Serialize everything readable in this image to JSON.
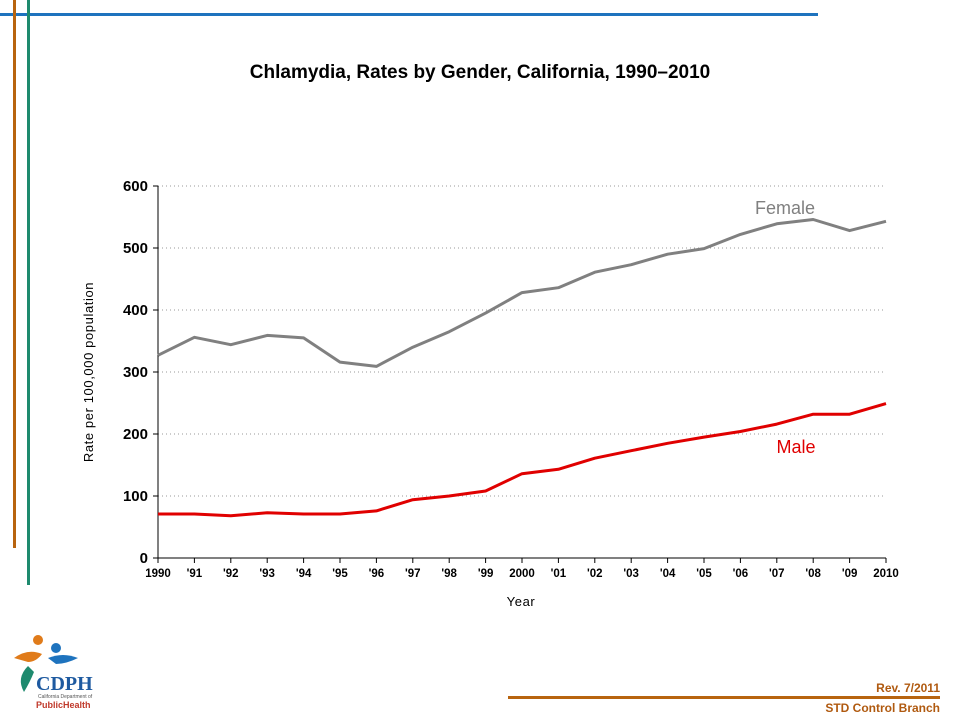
{
  "colors": {
    "female": "#808080",
    "male": "#e00000",
    "accent_blue": "#1e73be",
    "accent_orange": "#b8640f",
    "accent_green": "#1e8a6e",
    "footer_text": "#b05a10"
  },
  "footer": {
    "revision": "Rev. 7/2011",
    "branch": "STD Control Branch"
  },
  "logo": {
    "name": "cdph-logo",
    "text_main": "CDPH",
    "text_sub": "California Department of",
    "text_bottom": "PublicHealth"
  },
  "chart_data": {
    "type": "line",
    "title": "Chlamydia, Rates by Gender, California, 1990–2010",
    "xlabel": "Year",
    "ylabel": "Rate per 100,000 population",
    "ylim": [
      0,
      600
    ],
    "yticks": [
      0,
      100,
      200,
      300,
      400,
      500,
      600
    ],
    "categories": [
      "1990",
      "'91",
      "'92",
      "'93",
      "'94",
      "'95",
      "'96",
      "'97",
      "'98",
      "'99",
      "2000",
      "'01",
      "'02",
      "'03",
      "'04",
      "'05",
      "'06",
      "'07",
      "'08",
      "'09",
      "2010"
    ],
    "grid": true,
    "series": [
      {
        "name": "Female",
        "label": "Female",
        "values": [
          327,
          356,
          344,
          359,
          355,
          316,
          309,
          340,
          365,
          395,
          428,
          436,
          461,
          473,
          490,
          499,
          522,
          539,
          546,
          528,
          543
        ]
      },
      {
        "name": "Male",
        "label": "Male",
        "values": [
          71,
          71,
          68,
          73,
          71,
          71,
          76,
          94,
          100,
          108,
          136,
          143,
          161,
          173,
          185,
          195,
          204,
          216,
          232,
          232,
          249
        ]
      }
    ]
  }
}
